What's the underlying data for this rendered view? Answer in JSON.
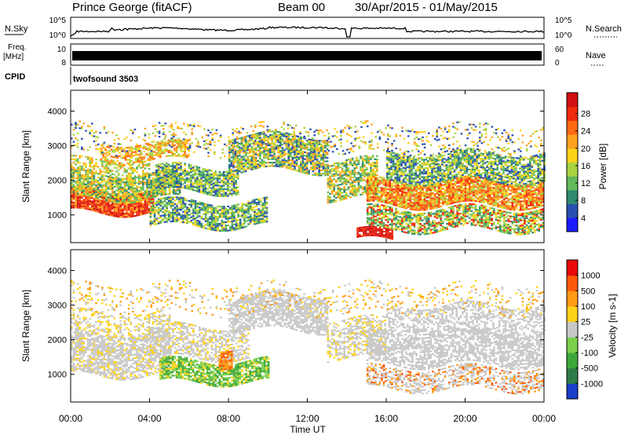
{
  "header": {
    "station": "Prince George (fitACF)",
    "beam": "Beam 00",
    "dates": "30/Apr/2015 - 01/May/2015"
  },
  "strips": {
    "nsky_label": "N.Sky",
    "nsky_ticks": [
      "10^5",
      "10^0"
    ],
    "nsearch_label": "N.Search",
    "nsearch_ticks": [
      "10^5",
      "10^0"
    ],
    "freq_label_1": "Freq.",
    "freq_label_2": "[MHz]",
    "freq_ticks": [
      "10",
      "8"
    ],
    "nave_label": "Nave",
    "nave_ticks": [
      "60",
      "0"
    ],
    "cpid_label": "CPID",
    "cpid_value": "twofsound 3503"
  },
  "chart_data": [
    {
      "type": "heatmap",
      "name": "power-panel",
      "ylabel": "Slant Range [km]",
      "yticks": [
        1000,
        2000,
        3000,
        4000
      ],
      "ylim": [
        200,
        4600
      ],
      "colorbar_label": "Power [dB]",
      "colorbar_ticks": [
        "28",
        "24",
        "20",
        "16",
        "12",
        "8",
        "4"
      ],
      "colors": [
        "#1a1aff",
        "#2a4fb0",
        "#2f8a70",
        "#62b95a",
        "#a8d440",
        "#ffd21a",
        "#ffa020",
        "#ff6a12",
        "#f02a0c",
        "#d01010"
      ]
    },
    {
      "type": "heatmap",
      "name": "velocity-panel",
      "ylabel": "Slant Range [km]",
      "yticks": [
        1000,
        2000,
        3000,
        4000
      ],
      "ylim": [
        200,
        4600
      ],
      "colorbar_label": "Velocity [m s-1]",
      "colorbar_ticks": [
        "1000",
        "500",
        "100",
        "25",
        "-25",
        "-100",
        "-500",
        "-1000"
      ],
      "colors": [
        "#1a3ec8",
        "#2f7a48",
        "#3fa83a",
        "#7ad04a",
        "#c8c8c8",
        "#ffd21a",
        "#ff9a12",
        "#ff5a0c",
        "#e80a0a"
      ]
    }
  ],
  "xaxis": {
    "ticks": [
      "00:00",
      "04:00",
      "08:00",
      "12:00",
      "16:00",
      "20:00",
      "00:00"
    ],
    "label": "Time UT"
  }
}
